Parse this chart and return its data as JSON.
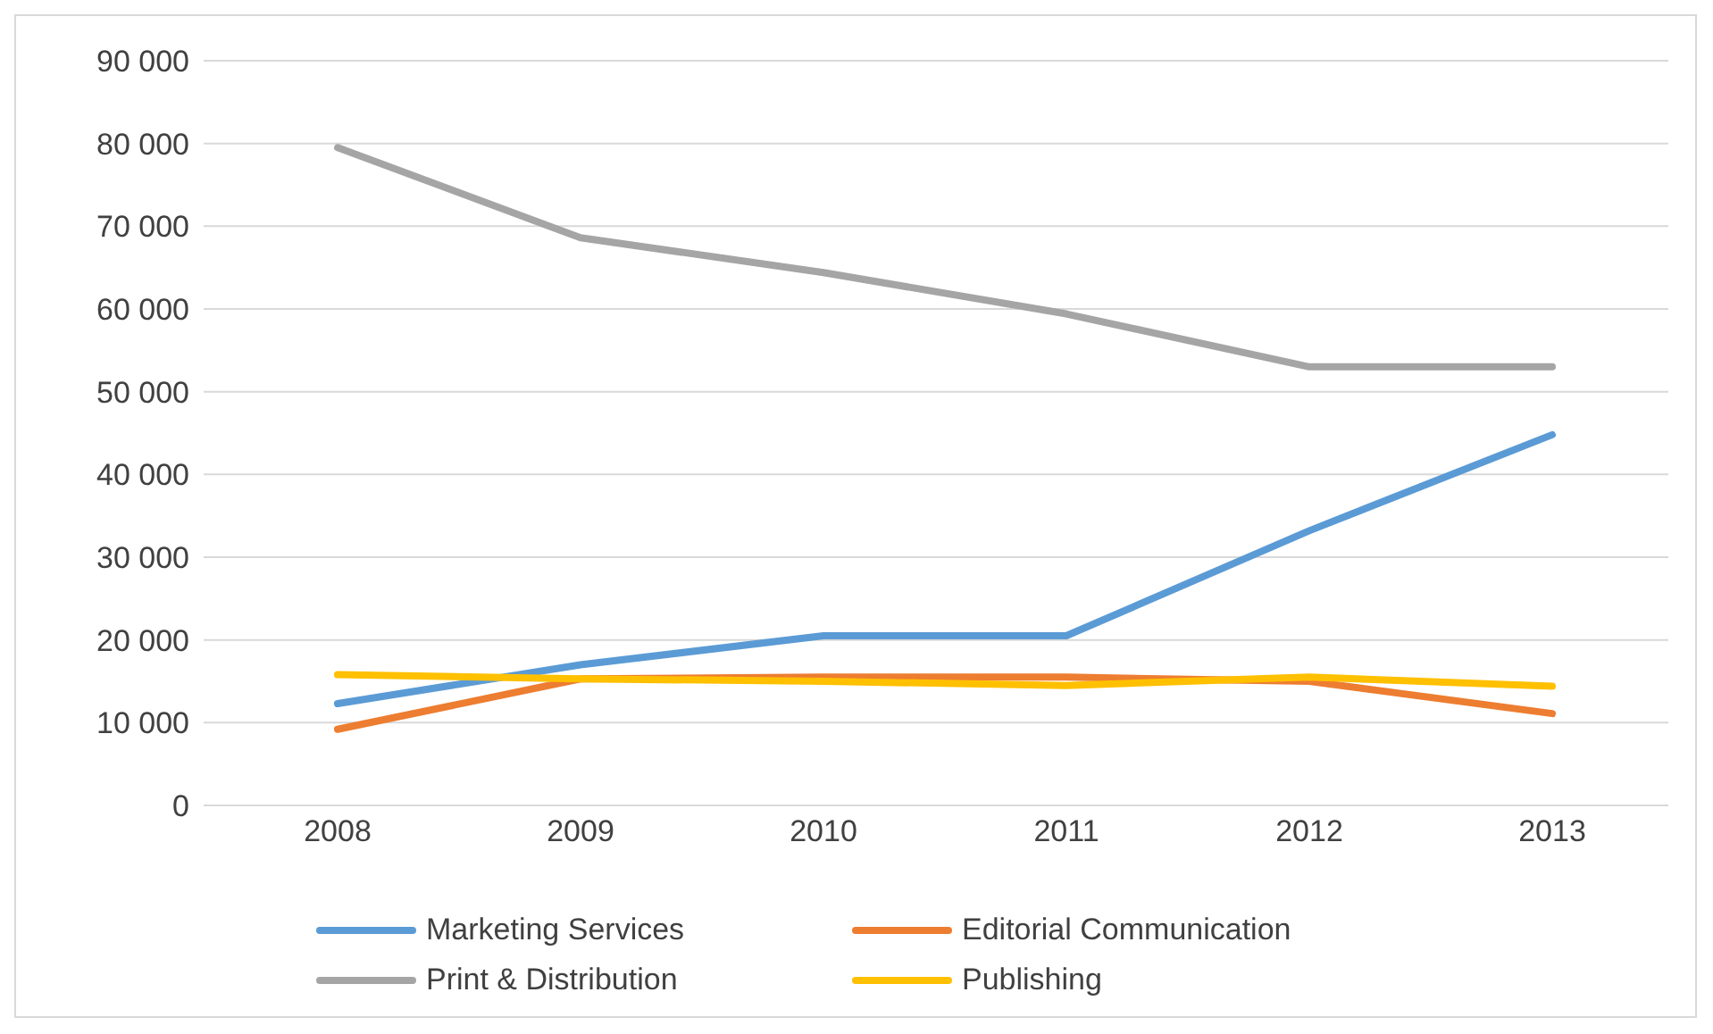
{
  "chart_data": {
    "type": "line",
    "categories": [
      "2008",
      "2009",
      "2010",
      "2011",
      "2012",
      "2013"
    ],
    "series": [
      {
        "name": "Marketing Services",
        "color": "#5b9bd5",
        "values": [
          12300,
          17000,
          20500,
          20500,
          33200,
          44800
        ]
      },
      {
        "name": "Editorial Communication",
        "color": "#ed7d31",
        "values": [
          9200,
          15300,
          15500,
          15500,
          15000,
          11100
        ]
      },
      {
        "name": "Print & Distribution",
        "color": "#a5a5a5",
        "values": [
          79500,
          68600,
          64400,
          59400,
          53000,
          53000
        ]
      },
      {
        "name": "Publishing",
        "color": "#ffc000",
        "values": [
          15800,
          15300,
          15000,
          14500,
          15500,
          14400
        ]
      }
    ],
    "ylim": [
      0,
      90000
    ],
    "yticks": [
      {
        "value": 0,
        "label": "0"
      },
      {
        "value": 10000,
        "label": "10 000"
      },
      {
        "value": 20000,
        "label": "20 000"
      },
      {
        "value": 30000,
        "label": "30 000"
      },
      {
        "value": 40000,
        "label": "40 000"
      },
      {
        "value": 50000,
        "label": "50 000"
      },
      {
        "value": 60000,
        "label": "60 000"
      },
      {
        "value": 70000,
        "label": "70 000"
      },
      {
        "value": 80000,
        "label": "80 000"
      },
      {
        "value": 90000,
        "label": "90 000"
      }
    ],
    "grid": "y",
    "legend": "bottom",
    "marker": "none",
    "line_style": "solid"
  }
}
